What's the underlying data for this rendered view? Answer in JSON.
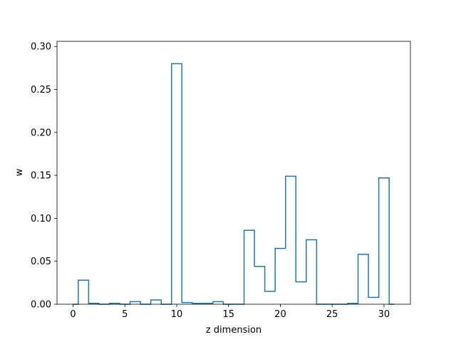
{
  "chart_data": {
    "type": "step",
    "drawstyle": "steps-mid",
    "x": [
      0,
      1,
      2,
      3,
      4,
      5,
      6,
      7,
      8,
      9,
      10,
      11,
      12,
      13,
      14,
      15,
      16,
      17,
      18,
      19,
      20,
      21,
      22,
      23,
      24,
      25,
      26,
      27,
      28,
      29,
      30,
      31
    ],
    "y": [
      0,
      0.028,
      0.001,
      0,
      0.001,
      0,
      0.003,
      0,
      0.005,
      0,
      0.28,
      0.002,
      0.001,
      0.001,
      0.003,
      0,
      0,
      0.086,
      0.044,
      0.015,
      0.065,
      0.149,
      0.026,
      0.075,
      0,
      0,
      0,
      0.001,
      0.058,
      0.008,
      0.147,
      0
    ],
    "xlabel": "z dimension",
    "ylabel": "w",
    "xlim": [
      -1.55,
      32.55
    ],
    "ylim": [
      0,
      0.306
    ],
    "xticks": [
      0,
      5,
      10,
      15,
      20,
      25,
      30
    ],
    "yticks": [
      0.0,
      0.05,
      0.1,
      0.15,
      0.2,
      0.25,
      0.3
    ],
    "xtick_labels": [
      "0",
      "5",
      "10",
      "15",
      "20",
      "25",
      "30"
    ],
    "ytick_labels": [
      "0.00",
      "0.05",
      "0.10",
      "0.15",
      "0.20",
      "0.25",
      "0.30"
    ],
    "line_color": "#1f77b4",
    "grid": false
  }
}
